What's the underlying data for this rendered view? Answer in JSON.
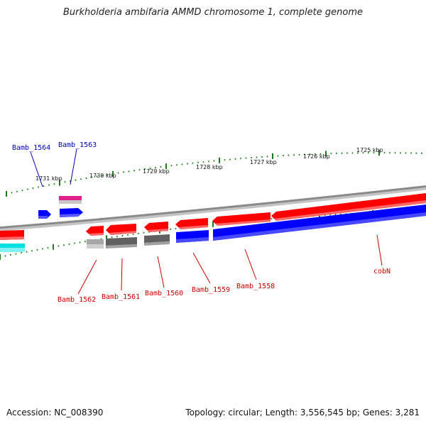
{
  "title": "Burkholderia ambifaria AMMD chromosome 1, complete genome",
  "footer": {
    "accession": "Accession: NC_008390",
    "summary": "Topology: circular; Length: 3,556,545 bp; Genes: 3,281"
  },
  "colors": {
    "backbone": "#8a8a8a",
    "tick": "#1a7a1a",
    "forward_cds": "#ff0000",
    "reverse_cds": "#0000ff",
    "other_feature_dark": "#606060",
    "other_feature_light": "#b0b0b0",
    "pink_feature": "#e0208c",
    "cyan_feature": "#00e0e0",
    "label_blue": "#0000bb",
    "label_red": "#cc0000"
  },
  "scale": {
    "unit": "kbp",
    "labels": [
      "1731 kbp",
      "1730 kbp",
      "1729 kbp",
      "1728 kbp",
      "1727 kbp",
      "1726 kbp",
      "1725 kbp"
    ]
  },
  "gene_labels": {
    "blue": [
      "Bamb_1564",
      "Bamb_1563"
    ],
    "red": [
      "Bamb_1562",
      "Bamb_1561",
      "Bamb_1560",
      "Bamb_1559",
      "Bamb_1558",
      "cobN"
    ]
  }
}
